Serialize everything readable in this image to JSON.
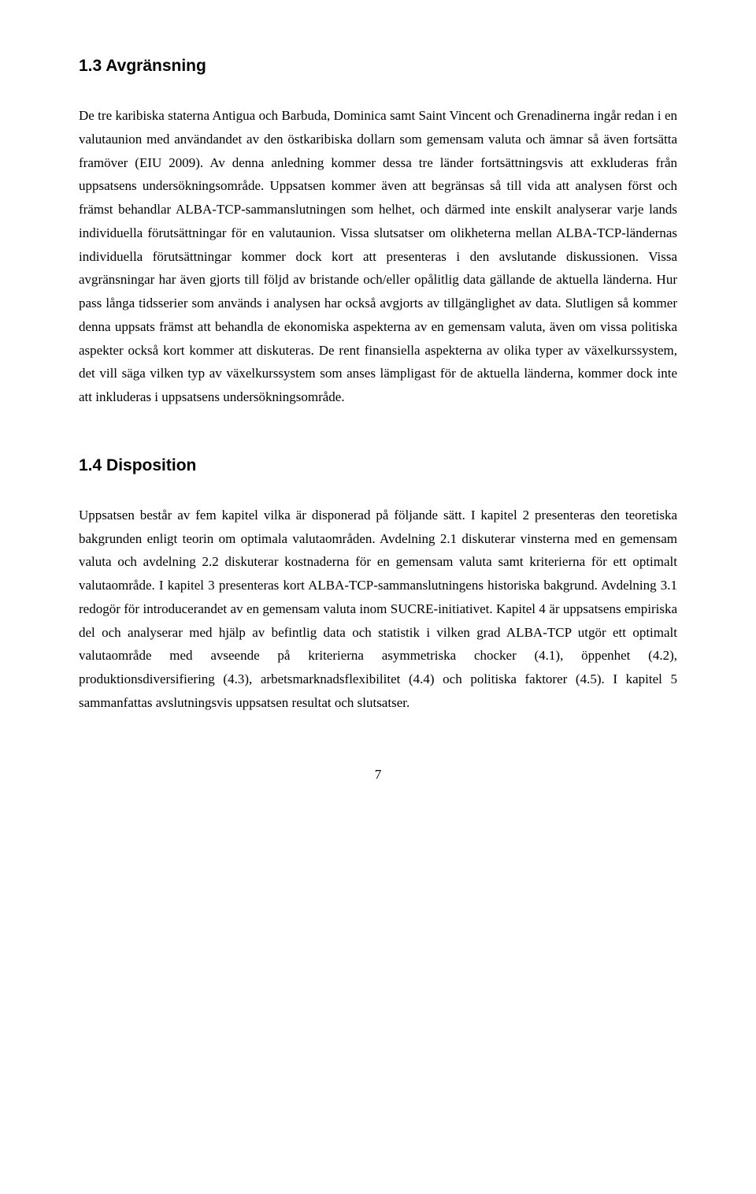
{
  "section1": {
    "heading": "1.3 Avgränsning",
    "body": "De tre karibiska staterna Antigua och Barbuda, Dominica samt Saint Vincent och Grenadinerna ingår redan i en valutaunion med användandet av den östkaribiska dollarn som gemensam valuta och ämnar så även fortsätta framöver (EIU 2009). Av denna anledning kommer dessa tre länder fortsättningsvis att exkluderas från uppsatsens undersökningsområde. Uppsatsen kommer även att begränsas så till vida att analysen först och främst behandlar ALBA-TCP-sammanslutningen som helhet, och därmed inte enskilt analyserar varje lands individuella förutsättningar för en valutaunion. Vissa slutsatser om olikheterna mellan ALBA-TCP-ländernas individuella förutsättningar kommer dock kort att presenteras i den avslutande diskussionen. Vissa avgränsningar har även gjorts till följd av bristande och/eller opålitlig data gällande de aktuella länderna. Hur pass långa tidsserier som används i analysen har också avgjorts av tillgänglighet av data. Slutligen så kommer denna uppsats främst att behandla de ekonomiska aspekterna av en gemensam valuta, även om vissa politiska aspekter också kort kommer att diskuteras. De rent finansiella aspekterna av olika typer av växelkurssystem, det vill säga vilken typ av växelkurssystem som anses lämpligast för de aktuella länderna, kommer dock inte att inkluderas i uppsatsens undersökningsområde."
  },
  "section2": {
    "heading": "1.4 Disposition",
    "body": "Uppsatsen består av fem kapitel vilka är disponerad på följande sätt. I kapitel 2 presenteras den teoretiska bakgrunden enligt teorin om optimala valutaområden. Avdelning 2.1 diskuterar vinsterna med en gemensam valuta och avdelning 2.2 diskuterar kostnaderna för en gemensam valuta samt kriterierna för ett optimalt valutaområde. I kapitel 3 presenteras kort ALBA-TCP-sammanslutningens historiska bakgrund. Avdelning 3.1 redogör för introducerandet av en gemensam valuta inom SUCRE-initiativet. Kapitel 4 är uppsatsens empiriska del och analyserar med hjälp av befintlig data och statistik i vilken grad ALBA-TCP utgör ett optimalt valutaområde med avseende på kriterierna asymmetriska chocker (4.1), öppenhet (4.2), produktionsdiversifiering (4.3), arbetsmarknadsflexibilitet (4.4) och politiska faktorer (4.5). I kapitel 5 sammanfattas avslutningsvis uppsatsen resultat och slutsatser."
  },
  "pageNumber": "7"
}
